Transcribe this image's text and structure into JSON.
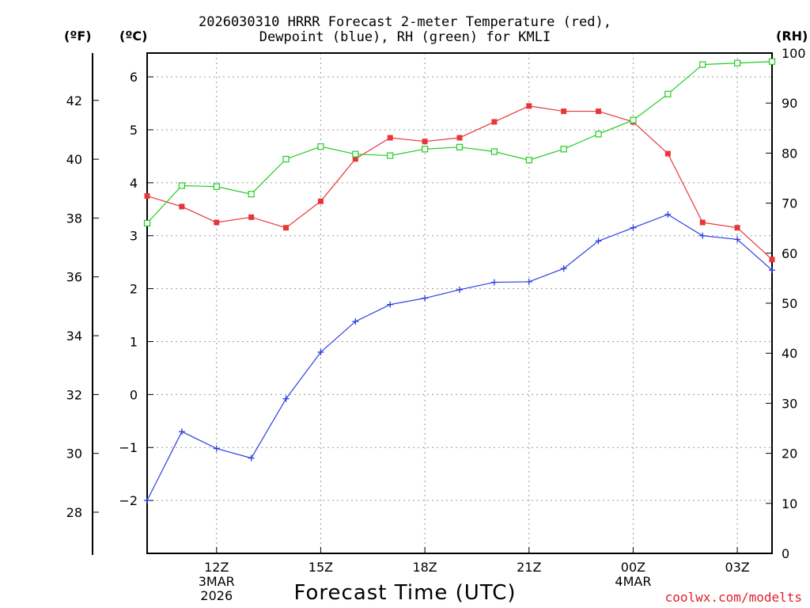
{
  "chart_data": {
    "type": "line",
    "title_lines": [
      "2026030310 HRRR Forecast 2-meter Temperature (red),",
      "Dewpoint (blue), RH (green) for KMLI"
    ],
    "xlabel": "Forecast Time (UTC)",
    "left_unit_f": "(ºF)",
    "left_unit_c": "(ºC)",
    "right_unit": "(RH)",
    "credit": "coolwx.com/modelts",
    "hours": [
      10,
      11,
      12,
      13,
      14,
      15,
      16,
      17,
      18,
      19,
      20,
      21,
      22,
      23,
      24,
      25,
      26,
      27,
      28
    ],
    "x_ticks": [
      {
        "hour": 12,
        "lines": [
          "12Z",
          "3MAR",
          "2026"
        ]
      },
      {
        "hour": 15,
        "lines": [
          "15Z"
        ]
      },
      {
        "hour": 18,
        "lines": [
          "18Z"
        ]
      },
      {
        "hour": 21,
        "lines": [
          "21Z"
        ]
      },
      {
        "hour": 24,
        "lines": [
          "00Z",
          "4MAR"
        ]
      },
      {
        "hour": 27,
        "lines": [
          "03Z"
        ]
      }
    ],
    "xlim": [
      10,
      28.0
    ],
    "ylim_c": [
      -3,
      6.45
    ],
    "c_ticks": [
      -2,
      -1,
      0,
      1,
      2,
      3,
      4,
      5,
      6
    ],
    "c_tick_labels": [
      "−2",
      "−1",
      "0",
      "1",
      "2",
      "3",
      "4",
      "5",
      "6"
    ],
    "f_ticks": [
      28,
      30,
      32,
      34,
      36,
      38,
      40,
      42
    ],
    "rh_ticks": [
      0,
      10,
      20,
      30,
      40,
      50,
      60,
      70,
      80,
      90,
      100
    ],
    "ylim_rh": [
      0,
      100
    ],
    "series": [
      {
        "name": "Temperature (red)",
        "color": "#e8353a",
        "marker": "square-filled",
        "values": [
          3.75,
          3.55,
          3.25,
          3.35,
          3.15,
          3.65,
          4.45,
          4.85,
          4.78,
          4.85,
          5.15,
          5.45,
          5.35,
          5.35,
          5.15,
          4.55,
          3.25,
          3.15,
          2.55
        ]
      },
      {
        "name": "Dewpoint (blue)",
        "color": "#2a3ee0",
        "marker": "plus",
        "values": [
          -2.0,
          -0.7,
          -1.02,
          -1.2,
          -0.08,
          0.8,
          1.38,
          1.7,
          1.82,
          1.98,
          2.12,
          2.13,
          2.38,
          2.9,
          3.15,
          3.4,
          3.0,
          2.93,
          2.35
        ]
      },
      {
        "name": "RH (green)",
        "color": "#22cc22",
        "marker": "square-open",
        "values": [
          66,
          73.5,
          73.3,
          71.8,
          78.8,
          81.3,
          79.8,
          79.5,
          80.8,
          81.2,
          80.3,
          78.6,
          80.8,
          83.8,
          86.6,
          91.8,
          97.7,
          98.0,
          98.3
        ]
      }
    ]
  }
}
